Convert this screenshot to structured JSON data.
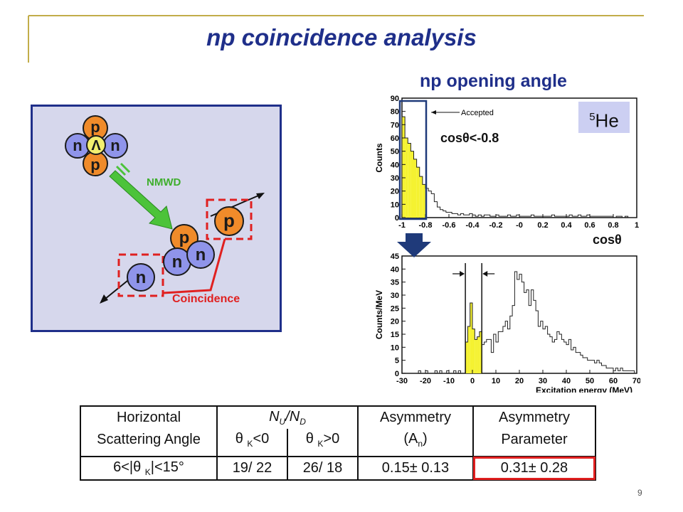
{
  "slide": {
    "title": "np coincidence analysis",
    "subtitle": "np opening angle",
    "page_number": "9"
  },
  "diagram": {
    "hypernucleus": {
      "top": "p",
      "left": "n",
      "center": "Λ",
      "right": "n",
      "bottom": "p"
    },
    "decay_label": "NMWD",
    "products": {
      "proton_out": "p",
      "cluster_p": "p",
      "cluster_n1": "n",
      "cluster_n2": "n",
      "neutron_out": "n"
    },
    "coincidence_label": "Coincidence"
  },
  "annotations": {
    "cos_cut": "cosθ<-0.8",
    "cos_axis": "cosθ",
    "nucleus_sup": "5",
    "nucleus_name": "He"
  },
  "chart_data": [
    {
      "type": "bar",
      "ylabel": "Counts",
      "xlabel": "",
      "xlim": [
        -1,
        1
      ],
      "ylim": [
        0,
        90
      ],
      "x_ticks": [
        "-1",
        "-0.8",
        "-0.6",
        "-0.4",
        "-0.2",
        "-0",
        "0.2",
        "0.4",
        "0.6",
        "0.8",
        "1"
      ],
      "y_ticks": [
        0,
        10,
        20,
        30,
        40,
        50,
        60,
        70,
        80,
        90
      ],
      "bin_width": 0.025,
      "bins_start": -1.0,
      "values": [
        76,
        60,
        56,
        50,
        44,
        38,
        31,
        25,
        22,
        20,
        18,
        12,
        8,
        6,
        5,
        4,
        4,
        3,
        3,
        2,
        3,
        2,
        2,
        3,
        2,
        1,
        2,
        1,
        2,
        2,
        1,
        1,
        2,
        1,
        1,
        1,
        2,
        1,
        1,
        2,
        1,
        1,
        1,
        1,
        2,
        1,
        1,
        1,
        1,
        1,
        1,
        2,
        1,
        1,
        1,
        1,
        1,
        2,
        1,
        1,
        2,
        1,
        1,
        2,
        1,
        1,
        1,
        1,
        1,
        1,
        1,
        1,
        0,
        1,
        1,
        0,
        1,
        0,
        0,
        0
      ],
      "highlight_range": [
        -1.0,
        -0.8
      ],
      "annotation": "Accepted"
    },
    {
      "type": "bar",
      "ylabel": "Counts/MeV",
      "xlabel": "Excitation energy (MeV)",
      "xlim": [
        -30,
        70
      ],
      "ylim": [
        0,
        45
      ],
      "x_ticks": [
        "-30",
        "-20",
        "-10",
        "0",
        "10",
        "20",
        "30",
        "40",
        "50",
        "60",
        "70"
      ],
      "y_ticks": [
        0,
        5,
        10,
        15,
        20,
        25,
        30,
        35,
        40,
        45
      ],
      "bin_width": 1,
      "bins_start": -30,
      "values": [
        0,
        0,
        0,
        0,
        0,
        0,
        0,
        1,
        0,
        0,
        1,
        0,
        0,
        0,
        1,
        0,
        1,
        0,
        0,
        1,
        0,
        0,
        1,
        0,
        1,
        0,
        0,
        12,
        18,
        27,
        17,
        13,
        14,
        16,
        11,
        12,
        13,
        13,
        8,
        15,
        12,
        16,
        16,
        18,
        20,
        17,
        22,
        26,
        39,
        36,
        38,
        35,
        31,
        32,
        26,
        32,
        28,
        24,
        18,
        20,
        17,
        18,
        15,
        14,
        12,
        13,
        16,
        15,
        13,
        12,
        11,
        13,
        9,
        10,
        8,
        8,
        7,
        6,
        6,
        5,
        5,
        5,
        4,
        5,
        4,
        3,
        3,
        2,
        2,
        2,
        1,
        2,
        1,
        2,
        1,
        1,
        1,
        1,
        1,
        0
      ],
      "highlight_range": [
        -3,
        4
      ]
    }
  ],
  "table": {
    "header1": [
      "Horizontal",
      "N",
      "U",
      "/",
      "N",
      "D",
      "Asymmetry",
      "Asymmetry"
    ],
    "header2": [
      "Scattering Angle",
      "θ ",
      "K",
      "<0",
      "θ ",
      "K",
      ">0",
      "(A",
      "n",
      ")",
      "Parameter"
    ],
    "row": [
      "6<|θ ",
      "K",
      "|<15°",
      "19/ 22",
      "26/ 18",
      "0.15±  0.13",
      "0.31±  0.28"
    ],
    "highlight_color": "#e02020"
  }
}
